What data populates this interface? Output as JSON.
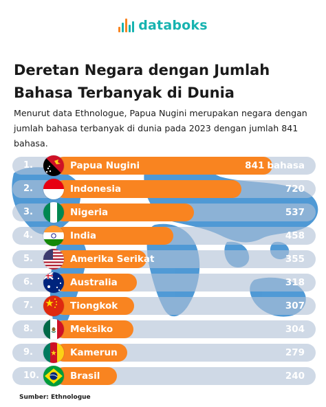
{
  "brand": {
    "name": "databoks"
  },
  "title": "Deretan Negara dengan Jumlah Bahasa Terbanyak di Dunia",
  "subtitle": "Menurut data Ethnologue, Papua Nugini merupakan negara dengan jumlah bahasa terbanyak di dunia pada 2023 dengan jumlah 841 bahasa.",
  "source": "Sumber: Ethnologue",
  "colors": {
    "bar": "#f98420",
    "track": "#b2c1d6",
    "brand": "#17b3b0",
    "map": "#3d8fd1"
  },
  "chart_data": {
    "type": "bar",
    "orientation": "horizontal",
    "unit": "bahasa",
    "categories": [
      "Papua Nugini",
      "Indonesia",
      "Nigeria",
      "India",
      "Amerika Serikat",
      "Australia",
      "Tiongkok",
      "Meksiko",
      "Kamerun",
      "Brasil"
    ],
    "ranks": [
      "1.",
      "2.",
      "3.",
      "4.",
      "5.",
      "6.",
      "7.",
      "8.",
      "9.",
      "10."
    ],
    "values": [
      841,
      720,
      537,
      458,
      355,
      318,
      307,
      304,
      279,
      240
    ],
    "flags": [
      "flag-papua-new-guinea-icon",
      "flag-indonesia-icon",
      "flag-nigeria-icon",
      "flag-india-icon",
      "flag-usa-icon",
      "flag-australia-icon",
      "flag-china-icon",
      "flag-mexico-icon",
      "flag-cameroon-icon",
      "flag-brazil-icon"
    ],
    "xlim": [
      0,
      841
    ]
  }
}
